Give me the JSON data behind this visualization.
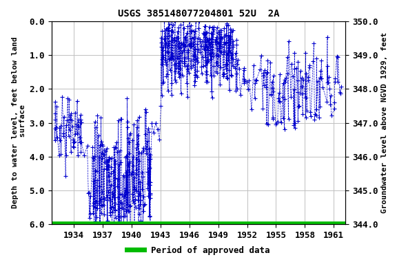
{
  "title": "USGS 385148077204801 52U  2A",
  "xlabel_years": [
    1934,
    1937,
    1940,
    1943,
    1946,
    1949,
    1952,
    1955,
    1958,
    1961
  ],
  "ylim_left": [
    6.0,
    0.0
  ],
  "ylim_right": [
    344.0,
    350.0
  ],
  "yticks_left": [
    0.0,
    1.0,
    2.0,
    3.0,
    4.0,
    5.0,
    6.0
  ],
  "yticks_right": [
    344.0,
    345.0,
    346.0,
    347.0,
    348.0,
    349.0,
    350.0
  ],
  "ylabel_left": "Depth to water level, feet below land\n surface",
  "ylabel_right": "Groundwater level above NGVD 1929, feet",
  "legend_label": "Period of approved data",
  "legend_color": "#00BB00",
  "data_color": "#0000CC",
  "background_color": "#ffffff",
  "grid_color": "#c0c0c0",
  "xlim": [
    1931.7,
    1962.2
  ],
  "title_fontsize": 10,
  "axis_label_fontsize": 8,
  "tick_fontsize": 9
}
